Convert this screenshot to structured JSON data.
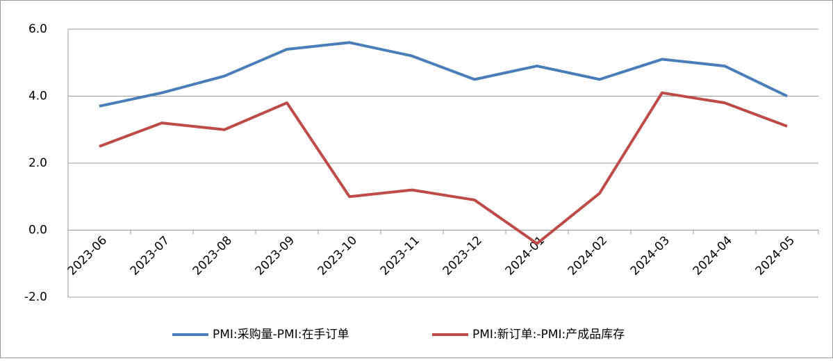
{
  "chart_data": {
    "type": "line",
    "categories": [
      "2023-06",
      "2023-07",
      "2023-08",
      "2023-09",
      "2023-10",
      "2023-11",
      "2023-12",
      "2024-01",
      "2024-02",
      "2024-03",
      "2024-04",
      "2024-05"
    ],
    "series": [
      {
        "name": "PMI:采购量-PMI:在手订单",
        "color": "#4a7ebb",
        "values": [
          3.7,
          4.1,
          4.6,
          5.4,
          5.6,
          5.2,
          4.5,
          4.9,
          4.5,
          5.1,
          4.9,
          4.0
        ]
      },
      {
        "name": "PMI:新订单:-PMI:产成品库存",
        "color": "#be4b48",
        "values": [
          2.5,
          3.2,
          3.0,
          3.8,
          1.0,
          1.2,
          0.9,
          -0.4,
          1.1,
          4.1,
          3.8,
          3.1
        ]
      }
    ],
    "ylim": [
      -2,
      6
    ],
    "yticks": [
      {
        "value": -2,
        "label": "-2.0"
      },
      {
        "value": 0,
        "label": "0.0"
      },
      {
        "value": 2,
        "label": "2.0"
      },
      {
        "value": 4,
        "label": "4.0"
      },
      {
        "value": 6,
        "label": "6.0"
      }
    ],
    "grid": true,
    "legend": "bottom"
  }
}
